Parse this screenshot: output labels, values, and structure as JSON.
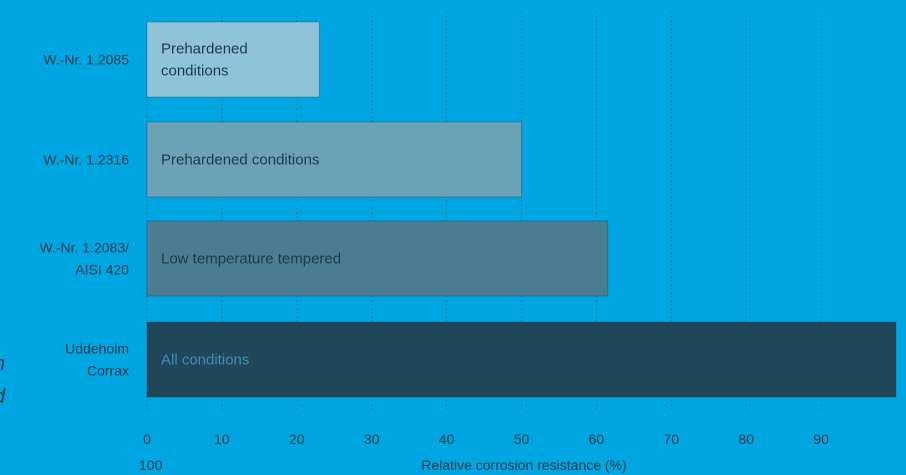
{
  "page": {
    "background": "#00a6e2"
  },
  "edge_fragments": [
    "n",
    "d"
  ],
  "chart_data": {
    "type": "bar",
    "orientation": "horizontal",
    "title": "",
    "xlabel": "Relative corrosion resistance (%)",
    "ylabel": "",
    "xlim": [
      0,
      100
    ],
    "x_ticks": [
      "0",
      "10",
      "20",
      "30",
      "40",
      "50",
      "60",
      "70",
      "80",
      "90",
      "100"
    ],
    "grid": true,
    "categories": [
      {
        "lines": [
          "W.-Nr. 1.2085"
        ],
        "value": 23,
        "label": [
          "Prehardened",
          "conditions"
        ],
        "color": "#8fc3d9",
        "label_color": "#1d3a4a"
      },
      {
        "lines": [
          "W.-Nr. 1.2316"
        ],
        "value": 50,
        "label": [
          "Prehardened conditions"
        ],
        "color": "#6ba2b8",
        "label_color": "#1d3a4a"
      },
      {
        "lines": [
          "W.-Nr. 1.2083/",
          "AISI 420"
        ],
        "value": 61.5,
        "label": [
          "Low temperature tempered"
        ],
        "color": "#4a7d91",
        "label_color": "#1d3a4a"
      },
      {
        "lines": [
          "Uddeholm",
          "Corrax"
        ],
        "value": 100,
        "label": [
          "All conditions"
        ],
        "color": "#20465a",
        "label_color": "#3f8fae"
      }
    ]
  }
}
